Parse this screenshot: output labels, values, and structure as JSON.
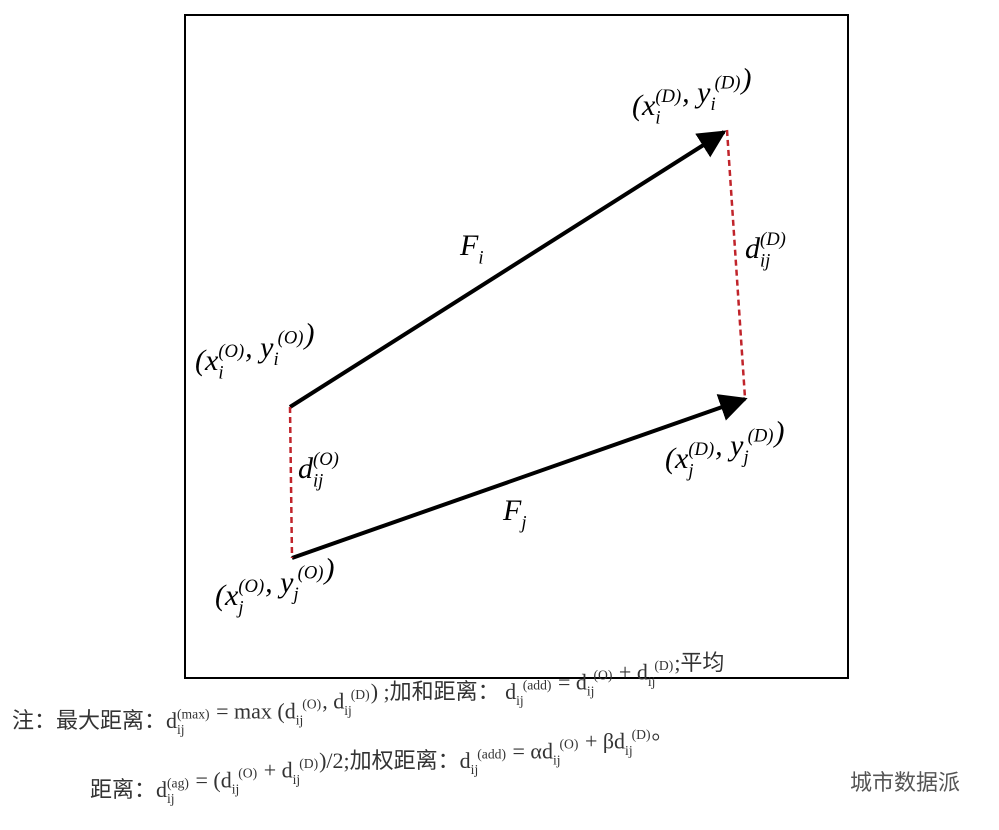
{
  "nodes": [
    {
      "label": [
        "(",
        {
          "base": "x",
          "sub": "i",
          "sup": "(D)"
        },
        ", ",
        {
          "base": "y",
          "sub": "i",
          "sup": "(D)"
        },
        ")"
      ]
    },
    {
      "label": [
        "(",
        {
          "base": "x",
          "sub": "i",
          "sup": "(O)"
        },
        ", ",
        {
          "base": "y",
          "sub": "i",
          "sup": "(O)"
        },
        ")"
      ]
    },
    {
      "label": [
        "(",
        {
          "base": "x",
          "sub": "j",
          "sup": "(D)"
        },
        ", ",
        {
          "base": "y",
          "sub": "j",
          "sup": "(D)"
        },
        ")"
      ]
    },
    {
      "label": [
        "(",
        {
          "base": "x",
          "sub": "j",
          "sup": "(O)"
        },
        ", ",
        {
          "base": "y",
          "sub": "j",
          "sup": "(O)"
        },
        ")"
      ]
    }
  ],
  "flows": [
    {
      "label": [
        {
          "base": "F",
          "sub": "i"
        }
      ]
    },
    {
      "label": [
        {
          "base": "F",
          "sub": "j"
        }
      ]
    }
  ],
  "distances": [
    {
      "label": [
        {
          "base": "d",
          "sub": "ij",
          "sup": "(D)"
        }
      ]
    },
    {
      "label": [
        {
          "base": "d",
          "sub": "ij",
          "sup": "(O)"
        }
      ]
    }
  ],
  "note": {
    "lines": [
      [
        "注：最大距离：",
        {
          "base": "d",
          "sub": "ij",
          "sup": "(max)"
        },
        " = max (",
        {
          "base": "d",
          "sub": "ij",
          "sup": "(O)"
        },
        ", ",
        {
          "base": "d",
          "sub": "ij",
          "sup": "(D)"
        },
        ") ;加和距离：  ",
        {
          "base": "d",
          "sub": "ij",
          "sup": "(add)"
        },
        " = ",
        {
          "base": "d",
          "sub": "ij",
          "sup": "(O)"
        },
        " + ",
        {
          "base": "d",
          "sub": "ij",
          "sup": "(D)"
        },
        ";平均"
      ],
      [
        "距离：",
        {
          "base": "d",
          "sub": "ij",
          "sup": "(ag)"
        },
        " = (",
        {
          "base": "d",
          "sub": "ij",
          "sup": "(O)"
        },
        " + ",
        {
          "base": "d",
          "sub": "ij",
          "sup": "(D)"
        },
        ")/2;加权距离：",
        {
          "base": "d",
          "sub": "ij",
          "sup": "(add)"
        },
        " = α",
        {
          "base": "d",
          "sub": "ij",
          "sup": "(O)"
        },
        " + β",
        {
          "base": "d",
          "sub": "ij",
          "sup": "(D)"
        },
        "。"
      ]
    ]
  },
  "watermark": "城市数据派"
}
